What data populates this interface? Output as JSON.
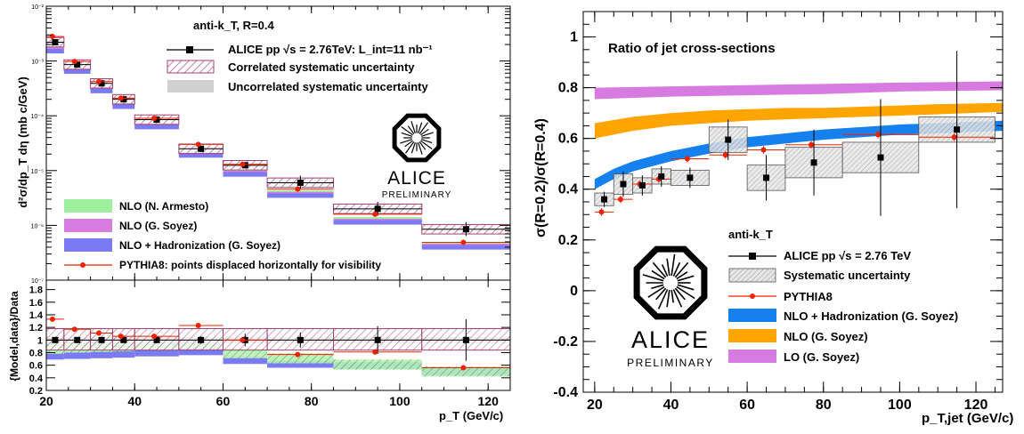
{
  "chart_data": [
    {
      "type": "scatter",
      "ylabel": "d²σ/dp_T dη (mb c/GeV)",
      "xlabel": "p_T (GeV/c)",
      "x_ticks": [
        "20",
        "40",
        "60",
        "80",
        "100",
        "120"
      ],
      "y_ticks": [
        "10⁻²",
        "10⁻³",
        "10⁻⁴",
        "10⁻⁵",
        "10⁻⁶",
        "10⁻⁷"
      ],
      "y_scale": "log",
      "xlim": [
        20,
        125
      ],
      "ylim": [
        1e-07,
        0.01
      ],
      "legend_title": "anti-k_T, R=0.4",
      "legend": [
        "ALICE pp √s = 2.76TeV: L_int=11 nb⁻¹",
        "Correlated systematic uncertainty",
        "Uncorrelated systematic uncertainty"
      ],
      "legend_models": [
        "NLO (N. Armesto)",
        "NLO (G. Soyez)",
        "NLO + Hadronization (G. Soyez)",
        "PYTHIA8: points displaced horizontally for visibility"
      ],
      "logo_text": [
        "ALICE",
        "PRELIMINARY"
      ],
      "bins": [
        [
          20,
          24
        ],
        [
          24,
          30
        ],
        [
          30,
          35
        ],
        [
          35,
          40
        ],
        [
          40,
          50
        ],
        [
          50,
          60
        ],
        [
          60,
          70
        ],
        [
          70,
          85
        ],
        [
          85,
          105
        ],
        [
          105,
          125
        ]
      ],
      "x": [
        22,
        27,
        32.5,
        37.5,
        45,
        55,
        65,
        77.5,
        95,
        115
      ],
      "data_y": [
        0.0022,
        0.00086,
        0.00039,
        0.0002,
        8.5e-05,
        2.5e-05,
        1.25e-05,
        6e-06,
        2e-06,
        8.5e-07
      ],
      "pythia_y": [
        0.0028,
        0.00098,
        0.00042,
        0.00021,
        9e-05,
        3e-05,
        1.3e-05,
        4.6e-06,
        1.6e-06,
        4.9e-07
      ],
      "nlo_had_y": [
        0.0016,
        0.00068,
        0.0003,
        0.000155,
        6.6e-05,
        2e-05,
        9e-06,
        3.7e-06,
        1.2e-06,
        4.2e-07
      ],
      "colors": {
        "nlo_armesto": "#9ef09e",
        "nlo_soyez": "#d77be0",
        "nlo_had": "#7a7af2",
        "pythia": "#ee2200",
        "data": "#000000",
        "corr_sys": "#a04070",
        "uncorr_sys": "#d0d0d0"
      }
    },
    {
      "type": "scatter",
      "ylabel": "{Model,data}/Data",
      "xlabel": "p_T (GeV/c)",
      "x_ticks": [
        "20",
        "40",
        "60",
        "80",
        "100",
        "120"
      ],
      "y_ticks": [
        "0.2",
        "0.4",
        "0.6",
        "0.8",
        "1",
        "1.2",
        "1.4",
        "1.6",
        "1.8"
      ],
      "xlim": [
        20,
        125
      ],
      "ylim": [
        0.2,
        1.95
      ],
      "pythia_ratio": [
        1.33,
        1.17,
        1.11,
        1.06,
        1.06,
        1.23,
        1.0,
        0.77,
        0.81,
        0.56
      ],
      "nlo_had_ratio": [
        0.75,
        0.76,
        0.77,
        0.78,
        0.8,
        0.82,
        0.68,
        0.62,
        0.6,
        0.5
      ],
      "nlo_armesto_ratio": [
        0.82,
        0.84,
        0.85,
        0.86,
        0.88,
        0.9,
        0.75,
        0.67,
        0.57,
        0.46
      ]
    },
    {
      "type": "scatter",
      "title": "Ratio of jet cross-sections",
      "ylabel": "σ(R=0.2)/σ(R=0.4)",
      "xlabel": "p_T,jet (GeV/c)",
      "x_ticks": [
        "20",
        "40",
        "60",
        "80",
        "100",
        "120"
      ],
      "y_ticks": [
        "-0.4",
        "-0.2",
        "0",
        "0.2",
        "0.4",
        "0.6",
        "0.8",
        "1"
      ],
      "xlim": [
        17,
        127
      ],
      "ylim": [
        -0.4,
        1.1
      ],
      "legend_title": "anti-k_T",
      "legend": [
        "ALICE pp √s = 2.76 TeV",
        "Systematic uncertainty",
        "PYTHIA8",
        "NLO + Hadronization (G. Soyez)",
        "NLO (G. Soyez)",
        "LO (G. Soyez)"
      ],
      "logo_text": [
        "ALICE",
        "PRELIMINARY"
      ],
      "bins": [
        [
          20,
          25
        ],
        [
          25,
          30
        ],
        [
          30,
          35
        ],
        [
          35,
          40
        ],
        [
          40,
          50
        ],
        [
          50,
          60
        ],
        [
          60,
          70
        ],
        [
          70,
          85
        ],
        [
          85,
          105
        ],
        [
          105,
          125
        ]
      ],
      "x": [
        22.5,
        27.5,
        32.5,
        37.5,
        45,
        55,
        65,
        77.5,
        95,
        115
      ],
      "data_y": [
        0.36,
        0.42,
        0.415,
        0.45,
        0.445,
        0.595,
        0.445,
        0.505,
        0.525,
        0.635
      ],
      "data_err": [
        0.03,
        0.05,
        0.04,
        0.04,
        0.04,
        0.08,
        0.09,
        0.13,
        0.23,
        0.31
      ],
      "sys_half": [
        0.025,
        0.04,
        0.03,
        0.03,
        0.03,
        0.05,
        0.05,
        0.06,
        0.06,
        0.05
      ],
      "pythia_y": [
        0.31,
        0.36,
        0.42,
        0.44,
        0.52,
        0.535,
        0.555,
        0.575,
        0.615,
        0.605
      ],
      "lo_band": {
        "x": [
          20,
          40,
          60,
          80,
          100,
          127
        ],
        "lo": [
          0.755,
          0.765,
          0.77,
          0.775,
          0.785,
          0.79
        ],
        "hi": [
          0.8,
          0.805,
          0.81,
          0.815,
          0.82,
          0.825
        ]
      },
      "nlo_band": {
        "x": [
          20,
          30,
          40,
          50,
          60,
          70,
          80,
          90,
          100,
          110,
          127
        ],
        "lo": [
          0.6,
          0.63,
          0.65,
          0.66,
          0.67,
          0.675,
          0.68,
          0.685,
          0.69,
          0.695,
          0.705
        ],
        "hi": [
          0.66,
          0.685,
          0.7,
          0.71,
          0.715,
          0.72,
          0.72,
          0.725,
          0.73,
          0.735,
          0.74
        ]
      },
      "nlo_had_band": {
        "x": [
          20,
          25,
          30,
          35,
          40,
          50,
          60,
          70,
          80,
          90,
          100,
          110,
          127
        ],
        "lo": [
          0.4,
          0.44,
          0.47,
          0.49,
          0.51,
          0.54,
          0.565,
          0.58,
          0.595,
          0.605,
          0.615,
          0.62,
          0.63
        ],
        "hi": [
          0.44,
          0.48,
          0.51,
          0.53,
          0.55,
          0.58,
          0.605,
          0.62,
          0.635,
          0.645,
          0.655,
          0.66,
          0.67
        ]
      },
      "colors": {
        "lo": "#d77be0",
        "nlo": "#ffa500",
        "nlo_had": "#1580ee",
        "pythia": "#ee2200",
        "data": "#000000",
        "sys": "#d0d0d0"
      }
    }
  ]
}
